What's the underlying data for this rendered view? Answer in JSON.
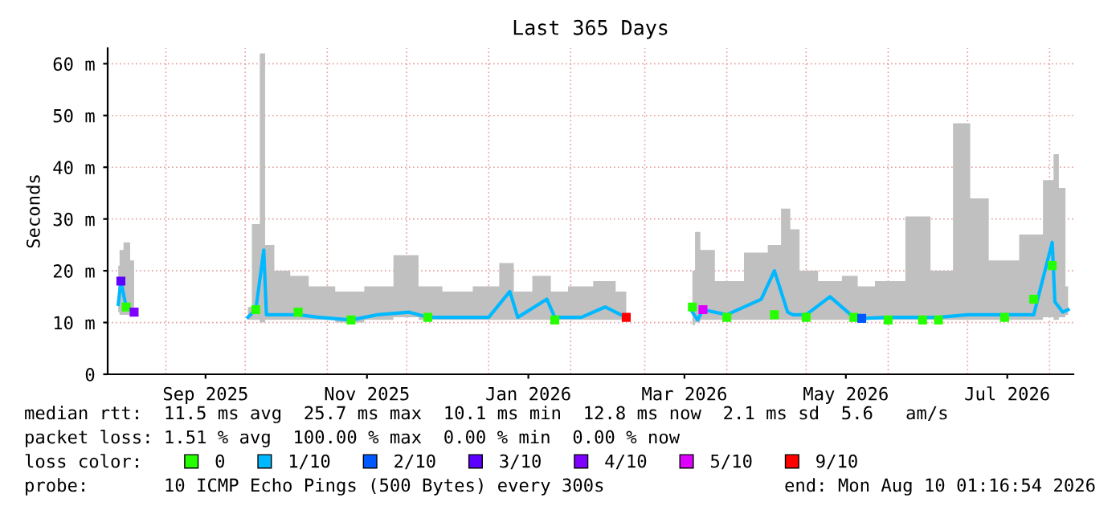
{
  "chart_data": {
    "type": "line",
    "title": "Last 365 Days",
    "ylabel": "Seconds",
    "x": [
      "2025-08-14",
      "2025-08-15",
      "2025-08-17",
      "2025-08-20",
      "2025-09-01",
      "2025-10-02",
      "2025-10-05",
      "2025-10-08",
      "2025-10-09",
      "2025-10-15",
      "2025-10-21",
      "2025-10-29",
      "2025-11-10",
      "2025-11-20",
      "2025-12-02",
      "2025-12-09",
      "2025-12-20",
      "2026-01-01",
      "2026-01-09",
      "2026-01-12",
      "2026-01-23",
      "2026-01-26",
      "2026-02-05",
      "2026-02-14",
      "2026-02-22",
      "2026-03-05",
      "2026-03-19",
      "2026-03-21",
      "2026-03-23",
      "2026-04-01",
      "2026-04-14",
      "2026-04-19",
      "2026-04-24",
      "2026-04-26",
      "2026-05-01",
      "2026-05-10",
      "2026-05-19",
      "2026-05-22",
      "2026-06-01",
      "2026-06-14",
      "2026-06-20",
      "2026-07-01",
      "2026-07-03",
      "2026-07-15",
      "2026-07-26",
      "2026-08-02",
      "2026-08-03",
      "2026-08-06",
      "2026-08-08"
    ],
    "series": [
      {
        "type": "scatter",
        "marker": "square",
        "name": "0",
        "color": "#26ff00",
        "values": [
          null,
          null,
          13,
          null,
          null,
          null,
          12.5,
          null,
          null,
          null,
          12,
          null,
          10.5,
          null,
          null,
          11,
          null,
          null,
          null,
          null,
          null,
          10.5,
          null,
          null,
          null,
          null,
          13,
          null,
          null,
          11,
          null,
          11.5,
          null,
          null,
          11,
          null,
          11,
          null,
          10.5,
          10.5,
          10.5,
          null,
          null,
          11,
          14.5,
          21,
          null,
          null,
          null
        ]
      },
      {
        "name": "1/10",
        "color": "#00b8ff",
        "values": [
          13.5,
          18,
          13,
          12,
          null,
          11,
          12.5,
          24,
          11.5,
          11.5,
          11.5,
          11,
          10.5,
          11.5,
          12,
          11,
          11,
          11,
          16,
          11,
          14.5,
          11,
          11,
          13,
          11,
          null,
          12,
          10.5,
          12.5,
          11.5,
          14.5,
          20,
          12,
          11.5,
          11.5,
          15,
          11,
          10.8,
          11,
          11,
          11,
          11.5,
          11.5,
          11.5,
          11.5,
          25.5,
          14,
          12,
          12.5
        ],
        "lower": [
          12,
          11.5,
          11.5,
          11.5,
          null,
          10.5,
          10.5,
          10,
          10.5,
          10.5,
          10.5,
          10.5,
          10,
          10.5,
          11,
          10.5,
          10.5,
          10.5,
          10.5,
          10.5,
          10.5,
          10.5,
          10.5,
          10.5,
          10.5,
          null,
          9.5,
          10,
          10.5,
          10.5,
          10.5,
          10.5,
          10.5,
          10.5,
          10.5,
          10.5,
          10.5,
          10.5,
          10.5,
          10.5,
          10.5,
          10.5,
          10.5,
          10.5,
          10.5,
          11,
          10.5,
          11,
          11.5
        ],
        "upper": [
          21,
          24,
          25.5,
          22,
          null,
          13,
          29,
          62,
          25,
          20,
          19,
          17,
          16,
          17,
          23,
          17,
          16,
          17,
          21.5,
          16,
          19,
          16,
          17,
          18,
          16,
          null,
          20,
          27.5,
          24,
          18,
          23.5,
          25,
          32,
          28,
          20,
          18,
          19,
          17,
          18,
          30.5,
          20,
          48.5,
          34,
          22,
          27,
          37.5,
          42.5,
          36,
          17
        ]
      },
      {
        "type": "scatter",
        "marker": "square",
        "name": "2/10",
        "color": "#0059ff",
        "values": [
          null,
          null,
          null,
          null,
          null,
          null,
          null,
          null,
          null,
          null,
          null,
          null,
          null,
          null,
          null,
          null,
          null,
          null,
          null,
          null,
          null,
          null,
          null,
          null,
          null,
          null,
          null,
          null,
          null,
          null,
          null,
          null,
          null,
          null,
          null,
          null,
          null,
          10.8,
          null,
          null,
          null,
          null,
          null,
          null,
          null,
          null,
          null,
          null,
          null
        ]
      },
      {
        "type": "scatter",
        "marker": "square",
        "name": "3/10",
        "color": "#5e00ff",
        "values": [
          null,
          18,
          null,
          null,
          null,
          null,
          null,
          null,
          null,
          null,
          null,
          null,
          null,
          null,
          null,
          null,
          null,
          null,
          null,
          null,
          null,
          null,
          null,
          null,
          null,
          null,
          null,
          null,
          null,
          null,
          null,
          null,
          null,
          null,
          null,
          null,
          null,
          null,
          null,
          null,
          null,
          null,
          null,
          null,
          null,
          null,
          null,
          null,
          null
        ]
      },
      {
        "type": "scatter",
        "marker": "square",
        "name": "4/10",
        "color": "#7e00ff",
        "values": [
          null,
          null,
          null,
          12,
          null,
          null,
          null,
          null,
          null,
          null,
          null,
          null,
          null,
          null,
          null,
          null,
          null,
          null,
          null,
          null,
          null,
          null,
          null,
          null,
          null,
          null,
          null,
          null,
          null,
          null,
          null,
          null,
          null,
          null,
          null,
          null,
          null,
          null,
          null,
          null,
          null,
          null,
          null,
          null,
          null,
          null,
          null,
          null,
          null
        ]
      },
      {
        "type": "scatter",
        "marker": "square",
        "name": "5/10",
        "color": "#dd00ff",
        "values": [
          null,
          null,
          null,
          null,
          null,
          null,
          null,
          null,
          null,
          null,
          null,
          null,
          null,
          null,
          null,
          null,
          null,
          null,
          null,
          null,
          null,
          null,
          null,
          null,
          null,
          null,
          null,
          null,
          12.5,
          null,
          null,
          null,
          null,
          null,
          null,
          null,
          null,
          null,
          null,
          null,
          null,
          null,
          null,
          null,
          null,
          null,
          null,
          null,
          null
        ]
      },
      {
        "type": "scatter",
        "marker": "square",
        "name": "9/10",
        "color": "#ff0000",
        "values": [
          null,
          null,
          null,
          null,
          null,
          null,
          null,
          null,
          null,
          null,
          null,
          null,
          null,
          null,
          null,
          null,
          null,
          null,
          null,
          null,
          null,
          null,
          null,
          null,
          11,
          null,
          null,
          null,
          null,
          null,
          null,
          null,
          null,
          null,
          null,
          null,
          null,
          null,
          null,
          null,
          null,
          null,
          null,
          null,
          null,
          null,
          null,
          null,
          null
        ]
      }
    ],
    "xlim": [
      "2025-08-10",
      "2026-08-10"
    ],
    "xticks": [
      {
        "value": "2025-09-01",
        "label": null
      },
      {
        "value": "2025-09-16",
        "label": "Sep 2025"
      },
      {
        "value": "2025-10-01",
        "label": null
      },
      {
        "value": "2025-11-01",
        "label": null
      },
      {
        "value": "2025-11-16",
        "label": "Nov 2025"
      },
      {
        "value": "2025-12-01",
        "label": null
      },
      {
        "value": "2026-01-01",
        "label": null
      },
      {
        "value": "2026-01-16",
        "label": "Jan 2026"
      },
      {
        "value": "2026-02-01",
        "label": null
      },
      {
        "value": "2026-03-01",
        "label": null
      },
      {
        "value": "2026-03-16",
        "label": "Mar 2026"
      },
      {
        "value": "2026-04-01",
        "label": null
      },
      {
        "value": "2026-05-01",
        "label": null
      },
      {
        "value": "2026-05-16",
        "label": "May 2026"
      },
      {
        "value": "2026-06-01",
        "label": null
      },
      {
        "value": "2026-07-01",
        "label": null
      },
      {
        "value": "2026-07-16",
        "label": "Jul 2026"
      },
      {
        "value": "2026-08-01",
        "label": null
      }
    ],
    "ylim": [
      0,
      63
    ],
    "yticks": [
      0,
      {
        "value": 10,
        "label": "10 m"
      },
      {
        "value": 20,
        "label": "20 m"
      },
      {
        "value": 30,
        "label": "30 m"
      },
      {
        "value": 40,
        "label": "40 m"
      },
      {
        "value": 50,
        "label": "50 m"
      },
      {
        "value": 60,
        "label": "60 m"
      }
    ],
    "grid": true,
    "legend": "bottom",
    "legend_title": "loss color:",
    "annotations": [
      "median rtt:  11.5 ms avg  25.7 ms max  10.1 ms min  12.8 ms now  2.1 ms sd  5.6   am/s",
      "packet loss: 1.51 % avg  100.00 % max  0.00 % min  0.00 % now",
      "probe:       10 ICMP Echo Pings (500 Bytes) every 300s",
      "end: Mon Aug 10 01:16:54 2026"
    ]
  }
}
